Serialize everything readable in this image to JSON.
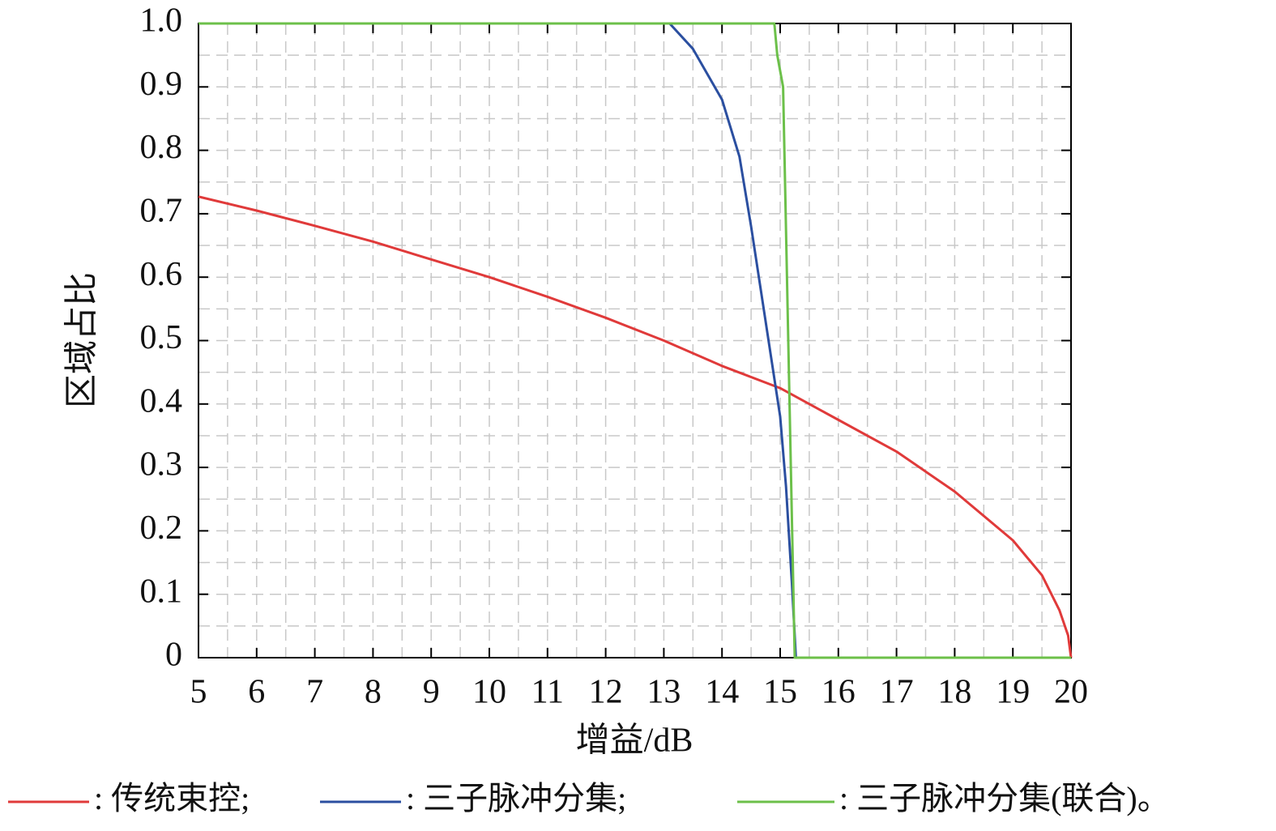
{
  "chart_data": {
    "type": "line",
    "xlabel": "增益/dB",
    "ylabel": "区域占比",
    "xlim": [
      5,
      20
    ],
    "xticks": [
      5,
      6,
      7,
      8,
      9,
      10,
      11,
      12,
      13,
      14,
      15,
      16,
      17,
      18,
      19,
      20
    ],
    "ylim": [
      0,
      1
    ],
    "yticks": [
      0,
      0.1,
      0.2,
      0.3,
      0.4,
      0.5,
      0.6,
      0.7,
      0.8,
      0.9,
      {
        "value": 1,
        "label": "1.0"
      }
    ],
    "grid": true,
    "minor_grid": true,
    "legend": "bottom",
    "series": [
      {
        "name": ": 传统束控;",
        "color": "#e03a3a",
        "x": [
          5,
          6,
          7,
          8,
          9,
          10,
          11,
          12,
          13,
          14,
          15,
          16,
          17,
          18,
          19,
          19.5,
          19.8,
          19.95,
          20
        ],
        "values": [
          0.727,
          0.705,
          0.681,
          0.656,
          0.628,
          0.6,
          0.569,
          0.536,
          0.5,
          0.46,
          0.425,
          0.375,
          0.325,
          0.262,
          0.185,
          0.13,
          0.075,
          0.035,
          0
        ]
      },
      {
        "name": ": 三子脉冲分集;",
        "color": "#2b4fa0",
        "x": [
          5,
          13.1,
          13.5,
          14,
          14.3,
          14.5,
          14.7,
          14.9,
          15,
          15.1,
          15.2,
          15.27,
          20
        ],
        "values": [
          1,
          1,
          0.96,
          0.88,
          0.79,
          0.68,
          0.56,
          0.44,
          0.38,
          0.27,
          0.12,
          0,
          0
        ]
      },
      {
        "name": ": 三子脉冲分集(联合)。",
        "color": "#6cc04a",
        "x": [
          5,
          14.9,
          14.95,
          15.05,
          15.25,
          20
        ],
        "values": [
          1,
          1,
          0.95,
          0.9,
          0,
          0
        ]
      }
    ]
  }
}
